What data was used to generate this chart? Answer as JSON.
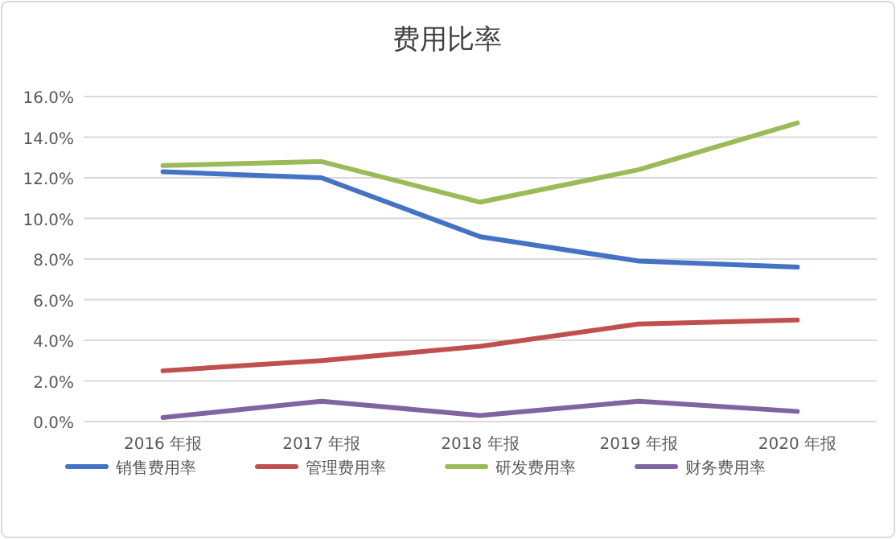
{
  "chart_data": {
    "type": "line",
    "title": "费用比率",
    "categories": [
      "2016 年报",
      "2017 年报",
      "2018 年报",
      "2019 年报",
      "2020 年报"
    ],
    "series": [
      {
        "name": "销售费用率",
        "color": "#4472c4",
        "values": [
          12.3,
          12.0,
          9.1,
          7.9,
          7.6
        ]
      },
      {
        "name": "管理费用率",
        "color": "#c0504d",
        "values": [
          2.5,
          3.0,
          3.7,
          4.8,
          5.0
        ]
      },
      {
        "name": "研发费用率",
        "color": "#9bbb59",
        "values": [
          12.6,
          12.8,
          10.8,
          12.4,
          14.7
        ]
      },
      {
        "name": "财务费用率",
        "color": "#8064a2",
        "values": [
          0.2,
          1.0,
          0.3,
          1.0,
          0.5
        ]
      }
    ],
    "ylim": [
      0,
      16
    ],
    "yticks": [
      {
        "value": 0,
        "label": "0.0%"
      },
      {
        "value": 2,
        "label": "2.0%"
      },
      {
        "value": 4,
        "label": "4.0%"
      },
      {
        "value": 6,
        "label": "6.0%"
      },
      {
        "value": 8,
        "label": "8.0%"
      },
      {
        "value": 10,
        "label": "10.0%"
      },
      {
        "value": 12,
        "label": "12.0%"
      },
      {
        "value": 14,
        "label": "14.0%"
      },
      {
        "value": 16,
        "label": "16.0%"
      }
    ],
    "grid": "y",
    "legend": "bottom",
    "marker": "none",
    "line_style": "solid"
  }
}
